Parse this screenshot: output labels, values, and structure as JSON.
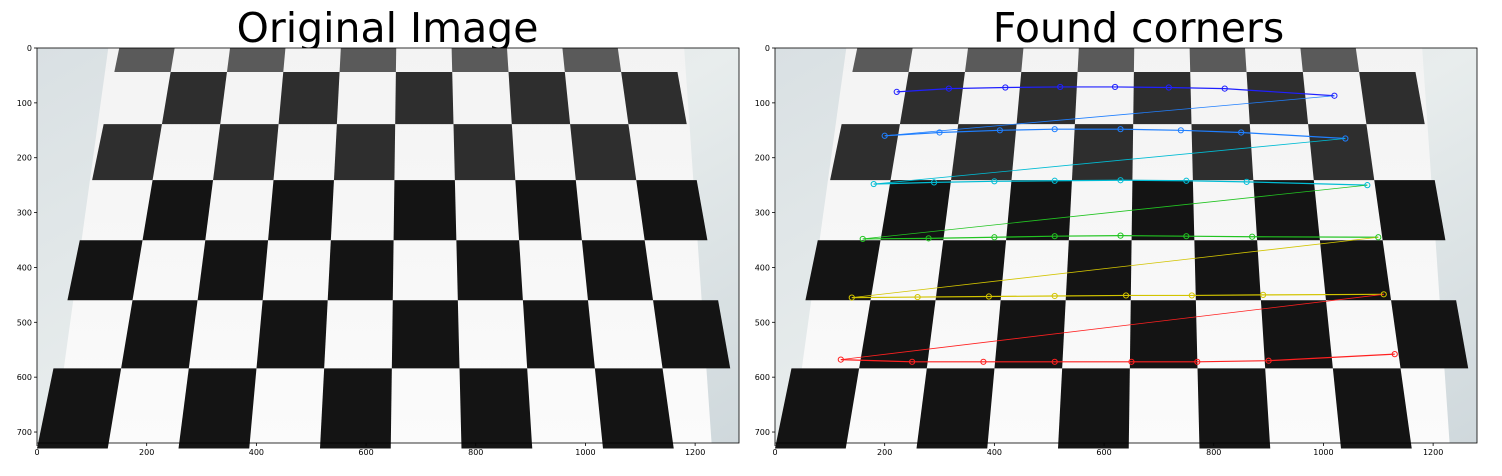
{
  "panels": [
    {
      "title": "Original Image",
      "x_ticks": [
        "0",
        "200",
        "400",
        "600",
        "800",
        "1000",
        "1200"
      ],
      "y_ticks": [
        "0",
        "100",
        "200",
        "300",
        "400",
        "500",
        "600",
        "700"
      ]
    },
    {
      "title": "Found corners",
      "x_ticks": [
        "0",
        "200",
        "400",
        "600",
        "800",
        "1000",
        "1200"
      ],
      "y_ticks": [
        "0",
        "100",
        "200",
        "300",
        "400",
        "500",
        "600",
        "700"
      ]
    }
  ],
  "image_extent": {
    "width": 1280,
    "height": 720
  },
  "corner_row_colors": [
    "#2020ff",
    "#1f7fff",
    "#00bcd4",
    "#22c422",
    "#d2c400",
    "#ff2020"
  ],
  "corner_rows": [
    [
      [
        222,
        80
      ],
      [
        317,
        74
      ],
      [
        420,
        72
      ],
      [
        520,
        71
      ],
      [
        620,
        71
      ],
      [
        718,
        72
      ],
      [
        820,
        74
      ],
      [
        1020,
        87
      ]
    ],
    [
      [
        200,
        160
      ],
      [
        300,
        154
      ],
      [
        410,
        150
      ],
      [
        510,
        148
      ],
      [
        630,
        148
      ],
      [
        740,
        150
      ],
      [
        850,
        154
      ],
      [
        1040,
        165
      ]
    ],
    [
      [
        180,
        248
      ],
      [
        290,
        245
      ],
      [
        400,
        243
      ],
      [
        510,
        242
      ],
      [
        630,
        241
      ],
      [
        750,
        242
      ],
      [
        860,
        244
      ],
      [
        1080,
        250
      ]
    ],
    [
      [
        160,
        348
      ],
      [
        280,
        347
      ],
      [
        400,
        345
      ],
      [
        510,
        343
      ],
      [
        630,
        342
      ],
      [
        750,
        343
      ],
      [
        870,
        344
      ],
      [
        1100,
        345
      ]
    ],
    [
      [
        140,
        455
      ],
      [
        260,
        454
      ],
      [
        390,
        453
      ],
      [
        510,
        452
      ],
      [
        640,
        451
      ],
      [
        760,
        451
      ],
      [
        890,
        450
      ],
      [
        1110,
        449
      ]
    ],
    [
      [
        120,
        568
      ],
      [
        250,
        572
      ],
      [
        380,
        572
      ],
      [
        510,
        572
      ],
      [
        650,
        572
      ],
      [
        770,
        572
      ],
      [
        900,
        570
      ],
      [
        1130,
        558
      ]
    ]
  ]
}
